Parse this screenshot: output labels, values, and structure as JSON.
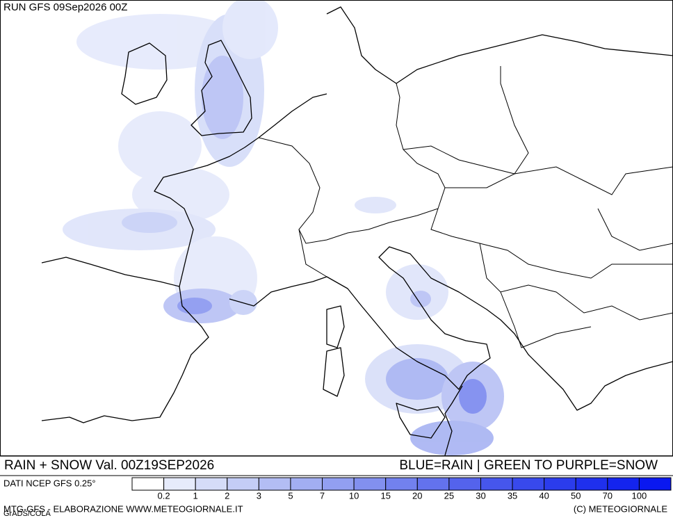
{
  "header": {
    "run": "RUN GFS 09Sep2026 00Z"
  },
  "footer": {
    "title": "RAIN + SNOW Val. 00Z19SEP2026",
    "key": "BLUE=RAIN | GREEN TO PURPLE=SNOW",
    "source": "DATI NCEP GFS 0.25°",
    "credit": "MTG-GFS - ELABORAZIONE WWW.METEOGIORNALE.IT",
    "copyright": "(C) METEOGIORNALE",
    "grads": "GrADS/COLA"
  },
  "legend": {
    "labels": [
      "0.2",
      "1",
      "2",
      "3",
      "5",
      "7",
      "10",
      "15",
      "20",
      "25",
      "30",
      "35",
      "40",
      "50",
      "70",
      "100"
    ],
    "colors": [
      "#ffffff",
      "#e6ebfb",
      "#d5dcf8",
      "#c4cdf6",
      "#b3bdf4",
      "#a2aef2",
      "#929ff1",
      "#8290ef",
      "#7281ee",
      "#6372ed",
      "#5463ec",
      "#4656ec",
      "#3849ec",
      "#2b3cec",
      "#1f30ed",
      "#1424ee",
      "#0a18f0"
    ]
  }
}
